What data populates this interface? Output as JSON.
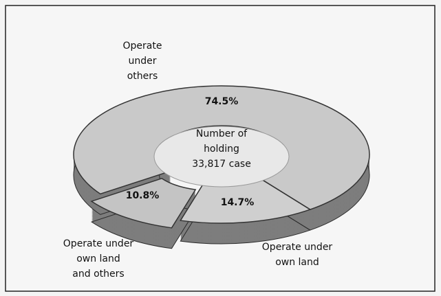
{
  "chart_data": {
    "type": "pie",
    "categories": [
      [
        "Operate",
        "under",
        "others"
      ],
      [
        "Operate under",
        "own land"
      ],
      [
        "Operate under",
        "own land",
        "and others"
      ]
    ],
    "values": [
      74.5,
      14.7,
      10.8
    ],
    "value_labels": [
      "74.5%",
      "14.7%",
      "10.8%"
    ],
    "center_label": [
      "Number of",
      "holding",
      "33,817 case"
    ],
    "colors": [
      "#c9c9c9",
      "#cfcfcf",
      "#c4c4c4"
    ]
  }
}
